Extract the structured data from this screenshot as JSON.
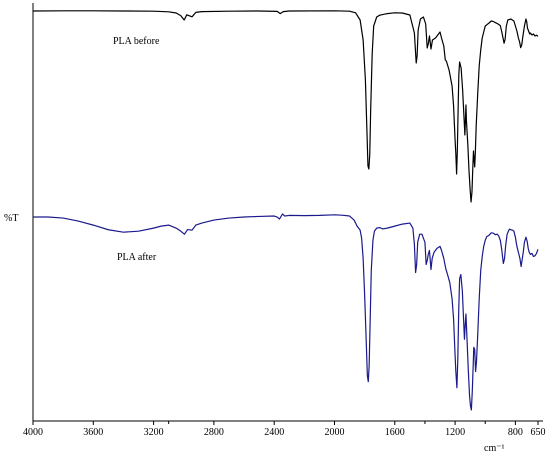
{
  "chart_data": {
    "type": "line",
    "xlabel": "cm⁻¹",
    "ylabel": "%T",
    "xlim": [
      4000,
      650
    ],
    "x_reversed": true,
    "x_ticks": [
      4000,
      3600,
      3200,
      2800,
      2400,
      2000,
      1600,
      1200,
      800,
      650
    ],
    "x_tick_labels": [
      "4000",
      "3600",
      "3200",
      "2800",
      "2400",
      "2000",
      "1600",
      "1200",
      "800",
      "650"
    ],
    "extra_tick_labels": [
      {
        "value": 3100,
        "label": "3100"
      },
      {
        "value": 1400,
        "label": "1400"
      },
      {
        "value": 1000,
        "label": "1000"
      }
    ],
    "y_ticks_shown": false,
    "grid": false,
    "legend": "none",
    "series": [
      {
        "name": "PLA before",
        "color": "#000000",
        "points": [
          [
            4000,
            99.5
          ],
          [
            3800,
            99.6
          ],
          [
            3600,
            99.6
          ],
          [
            3400,
            99.5
          ],
          [
            3200,
            99.4
          ],
          [
            3100,
            99.1
          ],
          [
            3050,
            98.5
          ],
          [
            3020,
            97.2
          ],
          [
            2997,
            95.0
          ],
          [
            2980,
            97.6
          ],
          [
            2945,
            96.6
          ],
          [
            2920,
            98.8
          ],
          [
            2880,
            99.2
          ],
          [
            2700,
            99.4
          ],
          [
            2500,
            99.5
          ],
          [
            2380,
            99.3
          ],
          [
            2360,
            98.2
          ],
          [
            2340,
            99.2
          ],
          [
            2300,
            99.5
          ],
          [
            2000,
            99.6
          ],
          [
            1900,
            99.4
          ],
          [
            1860,
            98.6
          ],
          [
            1830,
            95.0
          ],
          [
            1810,
            85.0
          ],
          [
            1795,
            65.0
          ],
          [
            1785,
            40.0
          ],
          [
            1778,
            22.0
          ],
          [
            1772,
            20.5
          ],
          [
            1766,
            28.0
          ],
          [
            1760,
            50.0
          ],
          [
            1750,
            78.0
          ],
          [
            1740,
            92.0
          ],
          [
            1720,
            96.5
          ],
          [
            1700,
            97.4
          ],
          [
            1650,
            98.2
          ],
          [
            1600,
            98.6
          ],
          [
            1550,
            98.5
          ],
          [
            1500,
            97.5
          ],
          [
            1470,
            88.5
          ],
          [
            1458,
            73.5
          ],
          [
            1452,
            77.0
          ],
          [
            1445,
            90.0
          ],
          [
            1430,
            95.5
          ],
          [
            1410,
            96.5
          ],
          [
            1395,
            93.0
          ],
          [
            1385,
            81.0
          ],
          [
            1378,
            83.0
          ],
          [
            1370,
            87.0
          ],
          [
            1360,
            80.5
          ],
          [
            1350,
            85.0
          ],
          [
            1330,
            86.0
          ],
          [
            1300,
            89.0
          ],
          [
            1290,
            86.0
          ],
          [
            1275,
            82.0
          ],
          [
            1265,
            75.0
          ],
          [
            1258,
            74.5
          ],
          [
            1240,
            70.0
          ],
          [
            1220,
            62.0
          ],
          [
            1210,
            52.0
          ],
          [
            1200,
            35.0
          ],
          [
            1195,
            28.0
          ],
          [
            1190,
            18.0
          ],
          [
            1185,
            30.0
          ],
          [
            1180,
            50.0
          ],
          [
            1175,
            68.0
          ],
          [
            1170,
            74.0
          ],
          [
            1160,
            71.0
          ],
          [
            1150,
            60.0
          ],
          [
            1140,
            45.0
          ],
          [
            1135,
            37.5
          ],
          [
            1130,
            48.0
          ],
          [
            1128,
            52.5
          ],
          [
            1125,
            45.0
          ],
          [
            1115,
            32.0
          ],
          [
            1108,
            20.0
          ],
          [
            1100,
            10.0
          ],
          [
            1094,
            4.0
          ],
          [
            1088,
            9.0
          ],
          [
            1084,
            18.0
          ],
          [
            1080,
            26.0
          ],
          [
            1078,
            29.5
          ],
          [
            1070,
            21.5
          ],
          [
            1066,
            28.0
          ],
          [
            1060,
            42.0
          ],
          [
            1050,
            58.0
          ],
          [
            1040,
            72.0
          ],
          [
            1030,
            80.0
          ],
          [
            1020,
            86.0
          ],
          [
            1010,
            89.0
          ],
          [
            1000,
            92.0
          ],
          [
            990,
            92.6
          ],
          [
            975,
            93.5
          ],
          [
            960,
            94.5
          ],
          [
            945,
            94.2
          ],
          [
            930,
            93.6
          ],
          [
            915,
            93.0
          ],
          [
            900,
            92.2
          ],
          [
            890,
            89.0
          ],
          [
            875,
            83.4
          ],
          [
            868,
            85.5
          ],
          [
            860,
            92.0
          ],
          [
            850,
            95.0
          ],
          [
            830,
            95.5
          ],
          [
            810,
            94.5
          ],
          [
            800,
            92.0
          ],
          [
            790,
            89.5
          ],
          [
            780,
            86.0
          ],
          [
            772,
            84.0
          ],
          [
            765,
            81.2
          ],
          [
            758,
            82.5
          ],
          [
            750,
            87.0
          ],
          [
            740,
            92.0
          ],
          [
            730,
            95.5
          ],
          [
            725,
            94.2
          ],
          [
            720,
            91.0
          ],
          [
            715,
            90.0
          ],
          [
            705,
            88.0
          ],
          [
            700,
            88.5
          ],
          [
            690,
            87.5
          ],
          [
            680,
            88.0
          ],
          [
            670,
            87.0
          ],
          [
            660,
            87.4
          ],
          [
            650,
            86.8
          ]
        ]
      },
      {
        "name": "PLA after",
        "color": "#1a1a8c",
        "points": [
          [
            4000,
            98.5
          ],
          [
            3900,
            98.5
          ],
          [
            3800,
            98.0
          ],
          [
            3700,
            96.5
          ],
          [
            3600,
            94.5
          ],
          [
            3500,
            92.2
          ],
          [
            3400,
            91.0
          ],
          [
            3300,
            91.5
          ],
          [
            3200,
            93.0
          ],
          [
            3150,
            94.0
          ],
          [
            3100,
            94.5
          ],
          [
            3050,
            93.0
          ],
          [
            3020,
            91.5
          ],
          [
            2995,
            90.0
          ],
          [
            2975,
            92.3
          ],
          [
            2945,
            92.0
          ],
          [
            2920,
            94.5
          ],
          [
            2880,
            95.5
          ],
          [
            2800,
            97.0
          ],
          [
            2700,
            98.0
          ],
          [
            2600,
            98.5
          ],
          [
            2500,
            98.8
          ],
          [
            2400,
            99.0
          ],
          [
            2380,
            98.5
          ],
          [
            2365,
            97.5
          ],
          [
            2345,
            100.0
          ],
          [
            2330,
            99.0
          ],
          [
            2300,
            99.3
          ],
          [
            2200,
            99.2
          ],
          [
            2100,
            99.3
          ],
          [
            2000,
            99.6
          ],
          [
            1950,
            99.4
          ],
          [
            1900,
            99.0
          ],
          [
            1870,
            97.0
          ],
          [
            1850,
            94.0
          ],
          [
            1830,
            92.0
          ],
          [
            1820,
            88.0
          ],
          [
            1810,
            78.0
          ],
          [
            1800,
            60.0
          ],
          [
            1790,
            38.0
          ],
          [
            1782,
            20.0
          ],
          [
            1776,
            17.0
          ],
          [
            1770,
            25.0
          ],
          [
            1764,
            45.0
          ],
          [
            1756,
            72.0
          ],
          [
            1745,
            87.0
          ],
          [
            1735,
            91.5
          ],
          [
            1720,
            93.0
          ],
          [
            1700,
            93.3
          ],
          [
            1680,
            92.6
          ],
          [
            1650,
            93.0
          ],
          [
            1600,
            94.0
          ],
          [
            1550,
            95.0
          ],
          [
            1500,
            95.5
          ],
          [
            1480,
            93.0
          ],
          [
            1470,
            85.0
          ],
          [
            1462,
            71.0
          ],
          [
            1455,
            75.0
          ],
          [
            1448,
            86.0
          ],
          [
            1435,
            90.0
          ],
          [
            1420,
            90.0
          ],
          [
            1400,
            86.0
          ],
          [
            1392,
            75.0
          ],
          [
            1385,
            77.0
          ],
          [
            1378,
            80.0
          ],
          [
            1370,
            82.0
          ],
          [
            1360,
            72.5
          ],
          [
            1352,
            78.0
          ],
          [
            1340,
            81.0
          ],
          [
            1320,
            83.0
          ],
          [
            1300,
            84.0
          ],
          [
            1290,
            82.0
          ],
          [
            1275,
            78.0
          ],
          [
            1262,
            73.0
          ],
          [
            1250,
            70.0
          ],
          [
            1235,
            66.0
          ],
          [
            1220,
            58.0
          ],
          [
            1210,
            48.0
          ],
          [
            1200,
            30.0
          ],
          [
            1195,
            22.0
          ],
          [
            1188,
            14.0
          ],
          [
            1182,
            28.0
          ],
          [
            1176,
            52.0
          ],
          [
            1170,
            68.0
          ],
          [
            1162,
            70.0
          ],
          [
            1152,
            62.0
          ],
          [
            1145,
            50.0
          ],
          [
            1138,
            38.0
          ],
          [
            1132,
            46.0
          ],
          [
            1128,
            50.5
          ],
          [
            1122,
            40.0
          ],
          [
            1112,
            22.0
          ],
          [
            1104,
            10.0
          ],
          [
            1098,
            5.0
          ],
          [
            1092,
            3.0
          ],
          [
            1086,
            12.0
          ],
          [
            1080,
            25.0
          ],
          [
            1076,
            34.0
          ],
          [
            1070,
            33.0
          ],
          [
            1064,
            22.0
          ],
          [
            1058,
            27.0
          ],
          [
            1050,
            40.0
          ],
          [
            1040,
            58.0
          ],
          [
            1030,
            72.0
          ],
          [
            1020,
            79.0
          ],
          [
            1010,
            84.0
          ],
          [
            1000,
            87.0
          ],
          [
            990,
            88.8
          ],
          [
            975,
            89.5
          ],
          [
            960,
            90.7
          ],
          [
            945,
            90.5
          ],
          [
            935,
            89.8
          ],
          [
            920,
            90.0
          ],
          [
            910,
            89.0
          ],
          [
            900,
            87.0
          ],
          [
            890,
            82.0
          ],
          [
            880,
            75.5
          ],
          [
            872,
            78.0
          ],
          [
            865,
            84.0
          ],
          [
            855,
            90.0
          ],
          [
            840,
            92.5
          ],
          [
            820,
            92.0
          ],
          [
            810,
            91.5
          ],
          [
            800,
            88.5
          ],
          [
            790,
            84.0
          ],
          [
            780,
            81.0
          ],
          [
            770,
            78.0
          ],
          [
            762,
            74.0
          ],
          [
            756,
            77.0
          ],
          [
            748,
            81.0
          ],
          [
            740,
            86.0
          ],
          [
            730,
            88.5
          ],
          [
            722,
            86.5
          ],
          [
            715,
            83.0
          ],
          [
            708,
            81.0
          ],
          [
            700,
            80.0
          ],
          [
            690,
            80.5
          ],
          [
            680,
            79.0
          ],
          [
            670,
            79.3
          ],
          [
            660,
            80.5
          ],
          [
            650,
            82.5
          ]
        ]
      }
    ]
  },
  "labels": {
    "before": "PLA before",
    "after": "PLA after"
  }
}
